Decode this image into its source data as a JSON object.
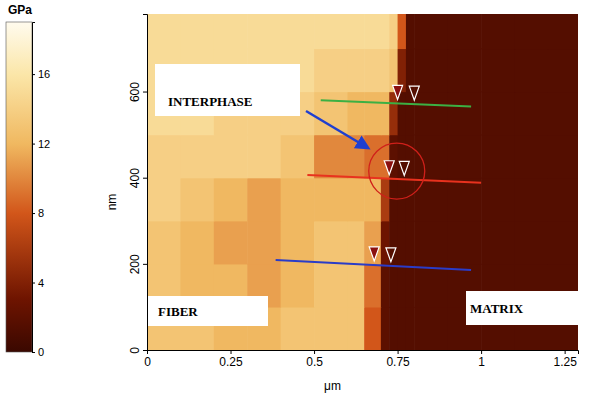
{
  "chart_data": {
    "type": "heatmap",
    "x_label": "μm",
    "y_label": "nm",
    "xlim": [
      0,
      1.29
    ],
    "ylim": [
      0,
      780
    ],
    "xticks": [
      0,
      0.25,
      0.5,
      0.75,
      1,
      1.25
    ],
    "yticks": [
      0,
      200,
      400,
      600
    ],
    "x_edges": [
      0,
      0.1,
      0.2,
      0.3,
      0.4,
      0.5,
      0.6,
      0.65,
      0.7,
      0.725,
      0.75,
      0.775,
      0.8,
      0.9,
      1.0,
      1.1,
      1.2,
      1.3
    ],
    "y_edges": [
      0,
      100,
      200,
      300,
      400,
      500,
      600,
      700,
      780
    ],
    "z": [
      [
        13,
        13,
        12,
        12,
        13,
        13,
        13,
        8,
        2,
        1.5,
        1.5,
        1.5,
        1.5,
        1.5,
        1.5,
        1.5,
        1.5
      ],
      [
        13,
        12,
        12,
        11,
        12,
        13,
        13,
        9,
        2,
        1.5,
        1.5,
        1.5,
        1.5,
        1.5,
        1.5,
        1.5,
        1.5
      ],
      [
        13,
        12,
        11,
        11,
        12,
        13,
        13,
        11,
        3,
        1.5,
        1.5,
        1.5,
        1.5,
        1.5,
        1.5,
        1.5,
        1.5
      ],
      [
        14,
        13,
        12,
        11,
        12,
        12,
        12,
        12,
        6,
        1.5,
        1.5,
        1.5,
        1.5,
        1.5,
        1.5,
        1.5,
        1.5
      ],
      [
        14,
        14,
        14,
        14,
        13,
        10,
        10,
        9,
        9,
        2,
        1.5,
        1.5,
        1.5,
        1.5,
        1.5,
        1.5,
        1.5
      ],
      [
        15,
        15,
        14,
        14,
        14,
        13,
        12,
        12,
        12,
        5,
        1.5,
        1.5,
        1.5,
        1.5,
        1.5,
        1.5,
        1.5
      ],
      [
        15,
        15,
        15,
        15,
        15,
        14,
        14,
        14,
        14,
        13,
        4,
        1.5,
        1.5,
        1.5,
        1.5,
        1.5,
        1.5
      ],
      [
        15,
        15,
        15,
        15,
        15,
        15,
        15,
        15,
        15,
        14,
        8,
        1.5,
        1.5,
        1.5,
        1.5,
        1.5,
        1.5
      ]
    ],
    "colorbar": {
      "title": "GPa",
      "range": [
        0,
        19
      ],
      "ticks": [
        0,
        4,
        8,
        12,
        16
      ]
    },
    "annotations": [
      "INTERPHASE",
      "FIBER",
      "MATRIX"
    ],
    "sections": [
      {
        "color": "#3cb043",
        "x": [
          0.52,
          0.97
        ],
        "y": [
          580,
          565
        ],
        "cursors": [
          0.75,
          0.8
        ]
      },
      {
        "color": "#e8321e",
        "x": [
          0.48,
          1.0
        ],
        "y": [
          406,
          388
        ],
        "cursors": [
          0.725,
          0.77
        ]
      },
      {
        "color": "#2a3cc8",
        "x": [
          0.385,
          0.97
        ],
        "y": [
          209,
          186
        ],
        "cursors": [
          0.68,
          0.73
        ]
      }
    ]
  }
}
